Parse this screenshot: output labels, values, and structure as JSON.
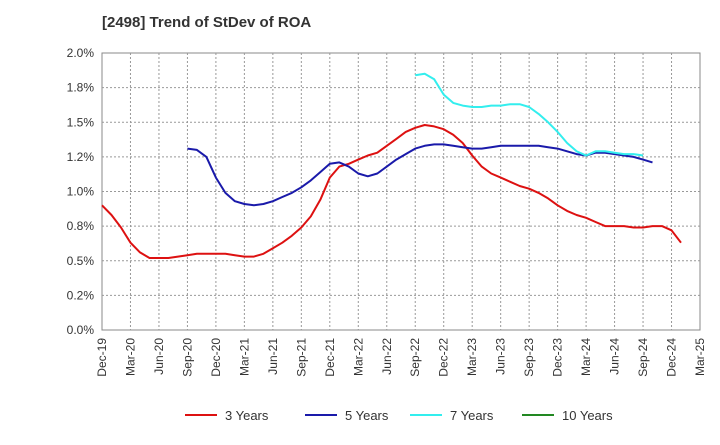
{
  "chart_data": {
    "type": "line",
    "title": "[2498]  Trend of StDev of ROA",
    "xlabel": "",
    "ylabel": "",
    "ylim": [
      0,
      2.0
    ],
    "y_ticks": [
      "0.0%",
      "0.2%",
      "0.5%",
      "0.8%",
      "1.0%",
      "1.2%",
      "1.5%",
      "1.8%",
      "2.0%"
    ],
    "y_tick_values": [
      0,
      0.25,
      0.5,
      0.75,
      1.0,
      1.25,
      1.5,
      1.75,
      2.0
    ],
    "x_ticks": [
      "Dec-19",
      "Mar-20",
      "Jun-20",
      "Sep-20",
      "Dec-20",
      "Mar-21",
      "Jun-21",
      "Sep-21",
      "Dec-21",
      "Mar-22",
      "Jun-22",
      "Sep-22",
      "Dec-22",
      "Mar-23",
      "Jun-23",
      "Sep-23",
      "Dec-23",
      "Mar-24",
      "Jun-24",
      "Sep-24",
      "Dec-24",
      "Mar-25"
    ],
    "grid": true,
    "legend_position": "bottom",
    "series": [
      {
        "name": "3 Years",
        "color": "#dd1111",
        "start_month": 0,
        "values": [
          0.9,
          0.83,
          0.74,
          0.63,
          0.56,
          0.52,
          0.52,
          0.52,
          0.53,
          0.54,
          0.55,
          0.55,
          0.55,
          0.55,
          0.54,
          0.53,
          0.53,
          0.55,
          0.59,
          0.63,
          0.68,
          0.74,
          0.82,
          0.94,
          1.1,
          1.18,
          1.2,
          1.23,
          1.26,
          1.28,
          1.33,
          1.38,
          1.43,
          1.46,
          1.48,
          1.47,
          1.45,
          1.41,
          1.35,
          1.26,
          1.18,
          1.13,
          1.1,
          1.07,
          1.04,
          1.02,
          0.99,
          0.95,
          0.9,
          0.86,
          0.83,
          0.81,
          0.78,
          0.75,
          0.75,
          0.75,
          0.74,
          0.74,
          0.75,
          0.75,
          0.72,
          0.63
        ]
      },
      {
        "name": "5 Years",
        "color": "#1a1aaa",
        "start_month": 9,
        "values": [
          1.31,
          1.3,
          1.25,
          1.1,
          0.99,
          0.93,
          0.91,
          0.9,
          0.91,
          0.93,
          0.96,
          0.99,
          1.03,
          1.08,
          1.14,
          1.2,
          1.21,
          1.18,
          1.13,
          1.11,
          1.13,
          1.18,
          1.23,
          1.27,
          1.31,
          1.33,
          1.34,
          1.34,
          1.33,
          1.32,
          1.31,
          1.31,
          1.32,
          1.33,
          1.33,
          1.33,
          1.33,
          1.33,
          1.32,
          1.31,
          1.29,
          1.27,
          1.26,
          1.28,
          1.28,
          1.27,
          1.26,
          1.25,
          1.23,
          1.21
        ]
      },
      {
        "name": "7 Years",
        "color": "#33eeee",
        "start_month": 33,
        "values": [
          1.84,
          1.85,
          1.81,
          1.7,
          1.64,
          1.62,
          1.61,
          1.61,
          1.62,
          1.62,
          1.63,
          1.63,
          1.61,
          1.56,
          1.5,
          1.43,
          1.35,
          1.29,
          1.26,
          1.29,
          1.29,
          1.28,
          1.27,
          1.27,
          1.26
        ]
      },
      {
        "name": "10 Years",
        "color": "#228822",
        "start_month": 0,
        "values": []
      }
    ]
  }
}
